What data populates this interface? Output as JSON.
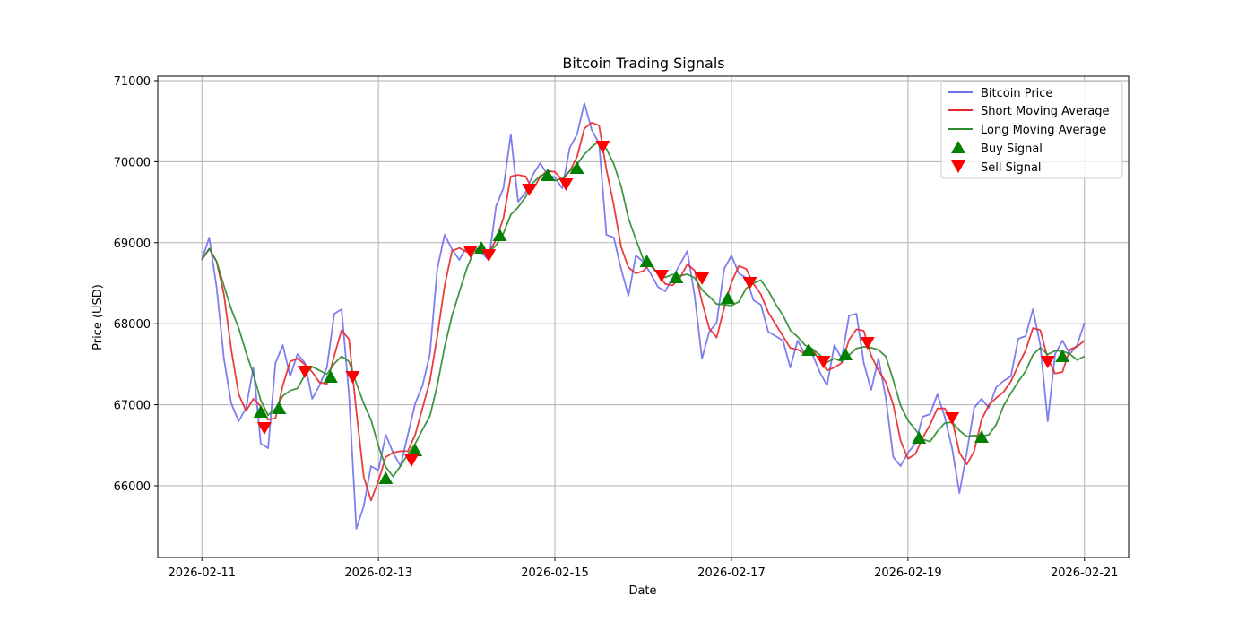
{
  "chart_data": {
    "type": "line",
    "title": "Bitcoin Trading Signals",
    "xlabel": "Date",
    "ylabel": "Price (USD)",
    "x_start": "2026-02-11T00:00:00Z",
    "interval_hours": 2,
    "xlim": [
      "2026-02-10T12:00:00Z",
      "2026-02-21T12:00:00Z"
    ],
    "ylim": [
      65115,
      71055
    ],
    "grid": true,
    "legend_position": "top-right",
    "x_ticks": [
      "2026-02-11",
      "2026-02-13",
      "2026-02-15",
      "2026-02-17",
      "2026-02-19",
      "2026-02-21"
    ],
    "y_ticks": [
      66000,
      67000,
      68000,
      69000,
      70000,
      71000
    ],
    "y_tick_labels": [
      "66000",
      "67000",
      "68000",
      "69000",
      "70000",
      "71000"
    ],
    "short_ma_window": 3,
    "long_ma_window": 6,
    "series": [
      {
        "name": "Bitcoin Price",
        "color": "#7070ee",
        "values": [
          68787,
          69064,
          68455,
          67570,
          67017,
          66796,
          66962,
          67460,
          66520,
          66465,
          67515,
          67736,
          67350,
          67626,
          67515,
          67073,
          67239,
          67460,
          68123,
          68179,
          67128,
          65469,
          65745,
          66243,
          66188,
          66630,
          66409,
          66243,
          66630,
          67017,
          67239,
          67626,
          68676,
          69097,
          68920,
          68787,
          68953,
          68953,
          68876,
          68787,
          69451,
          69672,
          70335,
          69506,
          69617,
          69838,
          69982,
          69838,
          69805,
          69672,
          70170,
          70335,
          70722,
          70390,
          70224,
          69097,
          69064,
          68676,
          68345,
          68842,
          68765,
          68621,
          68455,
          68400,
          68566,
          68732,
          68898,
          68345,
          67570,
          67902,
          68013,
          68676,
          68842,
          68621,
          68566,
          68289,
          68234,
          67902,
          67847,
          67792,
          67460,
          67792,
          67626,
          67626,
          67405,
          67239,
          67736,
          67570,
          68101,
          68123,
          67515,
          67183,
          67570,
          67073,
          66354,
          66243,
          66409,
          66520,
          66852,
          66885,
          67128,
          66852,
          66465,
          65911,
          66409,
          66962,
          67073,
          66962,
          67217,
          67294,
          67350,
          67814,
          67847,
          68179,
          67736,
          66796,
          67626,
          67792,
          67626,
          67736,
          68013
        ]
      },
      {
        "name": "Short Moving Average",
        "color": "#e8262a"
      },
      {
        "name": "Long Moving Average",
        "color": "#2e8b2e"
      }
    ],
    "signals": {
      "buy": {
        "name": "Buy Signal",
        "color": "#008000",
        "points": [
          [
            "2026-02-11T16:00:00Z",
            66907
          ],
          [
            "2026-02-11T21:00:00Z",
            66951
          ],
          [
            "2026-02-12T11:00:00Z",
            67338
          ],
          [
            "2026-02-13T02:00:00Z",
            66088
          ],
          [
            "2026-02-13T10:00:00Z",
            66431
          ],
          [
            "2026-02-14T04:00:00Z",
            68931
          ],
          [
            "2026-02-14T09:00:00Z",
            69086
          ],
          [
            "2026-02-14T22:00:00Z",
            69827
          ],
          [
            "2026-02-15T06:00:00Z",
            69915
          ],
          [
            "2026-02-16T01:00:00Z",
            68765
          ],
          [
            "2026-02-16T09:00:00Z",
            68566
          ],
          [
            "2026-02-16T23:00:00Z",
            68311
          ],
          [
            "2026-02-17T21:00:00Z",
            67670
          ],
          [
            "2026-02-18T07:00:00Z",
            67615
          ],
          [
            "2026-02-19T03:00:00Z",
            66586
          ],
          [
            "2026-02-19T20:00:00Z",
            66597
          ],
          [
            "2026-02-20T18:00:00Z",
            67593
          ]
        ]
      },
      "sell": {
        "name": "Sell Signal",
        "color": "#ff0000",
        "points": [
          [
            "2026-02-11T17:00:00Z",
            66719
          ],
          [
            "2026-02-12T04:00:00Z",
            67416
          ],
          [
            "2026-02-12T17:00:00Z",
            67349
          ],
          [
            "2026-02-13T09:00:00Z",
            66321
          ],
          [
            "2026-02-14T01:00:00Z",
            68898
          ],
          [
            "2026-02-14T06:00:00Z",
            68853
          ],
          [
            "2026-02-14T17:00:00Z",
            69661
          ],
          [
            "2026-02-15T03:00:00Z",
            69727
          ],
          [
            "2026-02-15T13:00:00Z",
            70192
          ],
          [
            "2026-02-16T05:00:00Z",
            68599
          ],
          [
            "2026-02-16T16:00:00Z",
            68566
          ],
          [
            "2026-02-17T05:00:00Z",
            68511
          ],
          [
            "2026-02-18T01:00:00Z",
            67537
          ],
          [
            "2026-02-18T13:00:00Z",
            67770
          ],
          [
            "2026-02-19T12:00:00Z",
            66841
          ],
          [
            "2026-02-20T14:00:00Z",
            67537
          ]
        ]
      }
    }
  }
}
